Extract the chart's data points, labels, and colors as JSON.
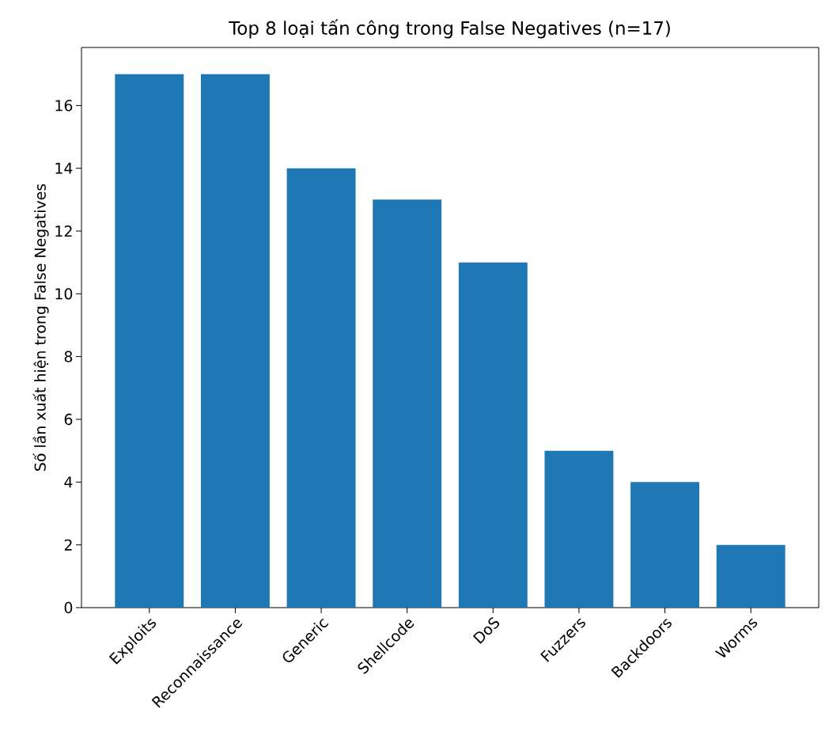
{
  "chart_data": {
    "type": "bar",
    "title": "Top 8 loại tấn công trong False Negatives (n=17)",
    "ylabel": "Số lần xuất hiện trong False Negatives",
    "categories": [
      "Exploits",
      "Reconnaissance",
      "Generic",
      "Shellcode",
      "DoS",
      "Fuzzers",
      "Backdoors",
      "Worms"
    ],
    "values": [
      17,
      17,
      14,
      13,
      11,
      5,
      4,
      2
    ],
    "color": "#1f77b4",
    "ylim": [
      0,
      17.85
    ],
    "yticks": [
      0,
      2,
      4,
      6,
      8,
      10,
      12,
      14,
      16
    ],
    "grid": false
  }
}
